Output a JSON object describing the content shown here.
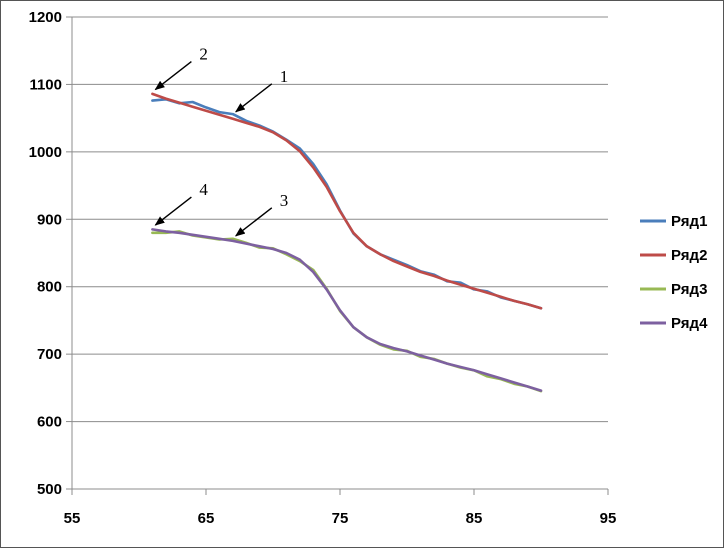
{
  "chart_data": {
    "type": "line",
    "title": "",
    "xlabel": "",
    "ylabel": "",
    "xlim": [
      55,
      95
    ],
    "ylim": [
      500,
      1200
    ],
    "xticks": [
      "55",
      "65",
      "75",
      "85",
      "95"
    ],
    "yticks": [
      "1200",
      "1100",
      "1000",
      "900",
      "800",
      "700",
      "600",
      "500"
    ],
    "xtick_values": [
      55,
      65,
      75,
      85,
      95
    ],
    "ytick_values": [
      1200,
      1100,
      1000,
      900,
      800,
      700,
      600,
      500
    ],
    "grid": "horizontal",
    "legend": "right",
    "series": [
      {
        "name": "Ряд1",
        "color": "#4a7ebb",
        "x": [
          61,
          62,
          63,
          64,
          65,
          66,
          67,
          68,
          69,
          70,
          71,
          72,
          73,
          74,
          75,
          76,
          77,
          78,
          79,
          80,
          81,
          82,
          83,
          84,
          85,
          86,
          87,
          88,
          89,
          90
        ],
        "y": [
          1076,
          1078,
          1072,
          1074,
          1066,
          1059,
          1056,
          1046,
          1039,
          1030,
          1018,
          1005,
          982,
          952,
          913,
          879,
          860,
          848,
          840,
          832,
          823,
          818,
          808,
          806,
          796,
          793,
          784,
          779,
          774,
          768
        ]
      },
      {
        "name": "Ряд2",
        "color": "#be4b48",
        "x": [
          61,
          62,
          63,
          64,
          65,
          66,
          67,
          68,
          69,
          70,
          71,
          72,
          73,
          74,
          75,
          76,
          77,
          78,
          79,
          80,
          81,
          82,
          83,
          84,
          85,
          86,
          87,
          88,
          89,
          90
        ],
        "y": [
          1086,
          1079,
          1073,
          1067,
          1061,
          1055,
          1049,
          1043,
          1037,
          1029,
          1017,
          1001,
          977,
          948,
          912,
          880,
          860,
          848,
          838,
          830,
          822,
          816,
          809,
          803,
          797,
          791,
          785,
          779,
          774,
          768
        ]
      },
      {
        "name": "Ряд3",
        "color": "#98b954",
        "x": [
          61,
          62,
          63,
          64,
          65,
          66,
          67,
          68,
          69,
          70,
          71,
          72,
          73,
          74,
          75,
          76,
          77,
          78,
          79,
          80,
          81,
          82,
          83,
          84,
          85,
          86,
          87,
          88,
          89,
          90
        ],
        "y": [
          880,
          880,
          882,
          876,
          873,
          870,
          871,
          865,
          858,
          857,
          848,
          838,
          825,
          797,
          764,
          740,
          725,
          714,
          707,
          705,
          696,
          693,
          686,
          680,
          676,
          667,
          663,
          656,
          652,
          645
        ]
      },
      {
        "name": "Ряд4",
        "color": "#7d60a0",
        "x": [
          61,
          62,
          63,
          64,
          65,
          66,
          67,
          68,
          69,
          70,
          71,
          72,
          73,
          74,
          75,
          76,
          77,
          78,
          79,
          80,
          81,
          82,
          83,
          84,
          85,
          86,
          87,
          88,
          89,
          90
        ],
        "y": [
          885,
          882,
          880,
          877,
          874,
          871,
          868,
          864,
          860,
          856,
          850,
          840,
          822,
          796,
          765,
          740,
          725,
          715,
          709,
          704,
          698,
          692,
          686,
          681,
          676,
          670,
          664,
          658,
          652,
          646
        ]
      }
    ],
    "annotations": [
      {
        "label": "2",
        "point": [
          61,
          1088
        ]
      },
      {
        "label": "1",
        "point": [
          67,
          1055
        ]
      },
      {
        "label": "4",
        "point": [
          61,
          887
        ]
      },
      {
        "label": "3",
        "point": [
          67,
          871
        ]
      }
    ]
  }
}
